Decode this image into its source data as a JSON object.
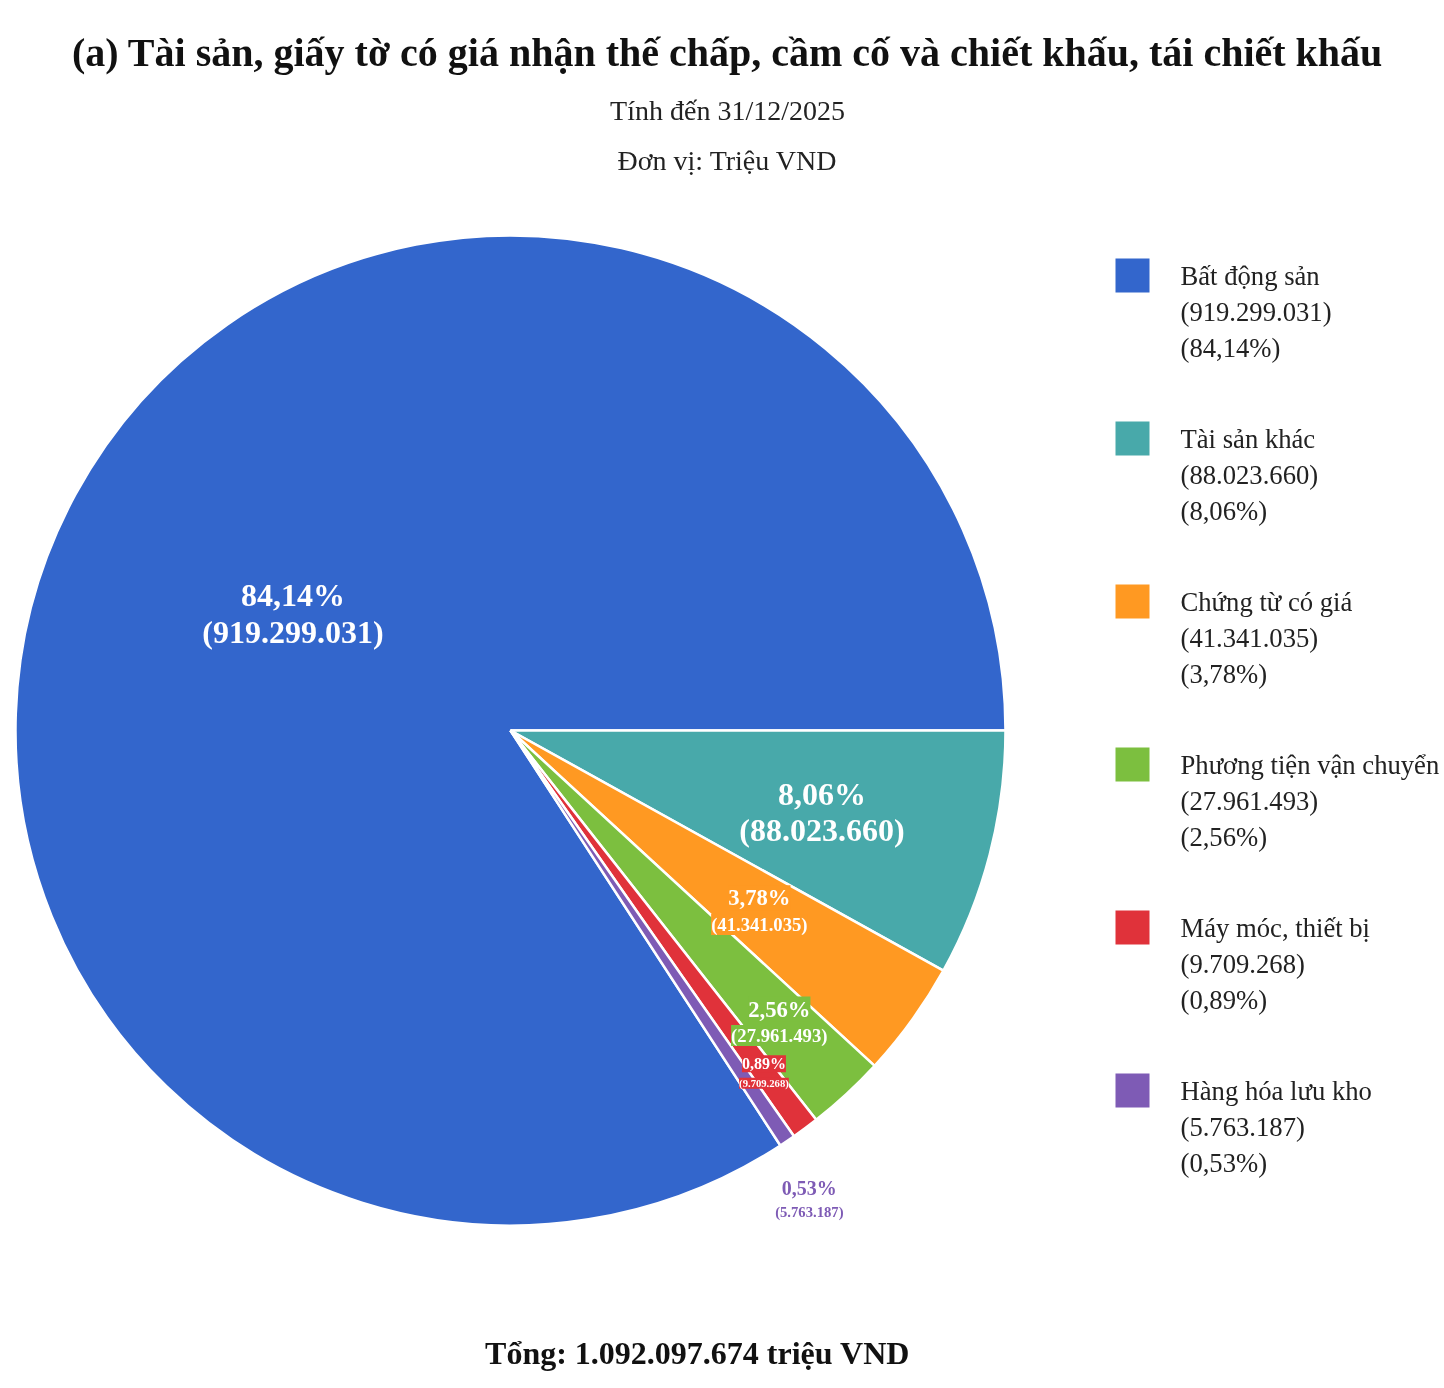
{
  "chart_data": {
    "type": "pie",
    "title": "(a) Tài sản, giấy tờ có giá nhận thế chấp, cầm cố và chiết khấu, tái chiết khấu",
    "subtitle": "Tính đến 31/12/2025\nĐơn vị: Triệu VND",
    "categories": [
      "Bất động sản\n(919.299.031)\n(84,14%)",
      "Tài sản khác\n(88.023.660)\n(8,06%)",
      "Chứng từ có giá\n(41.341.035)\n(3,78%)",
      "Phương tiện vận chuyển\n(27.961.493)\n(2,56%)",
      "Máy móc, thiết bị\n(9.709.268)\n(0,89%)",
      "Hàng hóa lưu kho\n(5.763.187)\n(0,53%)"
    ],
    "values": [
      919299031,
      88023660,
      41341035,
      27961493,
      9709268,
      5763187
    ],
    "colors": [
      "#3366cc",
      "#48a9aa",
      "#ff9922",
      "#7cbf3f",
      "#e0323a",
      "#7e5bb5"
    ],
    "value_labels": [
      "84,14%\n(919.299.031)",
      "8,06%\n(88.023.660)",
      "3,78%\n(41.341.035)",
      "2,56%\n(27.961.493)",
      "0,89%\n(9.709.268)",
      "0,53%\n(5.763.187)"
    ],
    "legend": "right",
    "annotations": [
      "Tổng: 1.092.097.674 triệu VND"
    ]
  }
}
